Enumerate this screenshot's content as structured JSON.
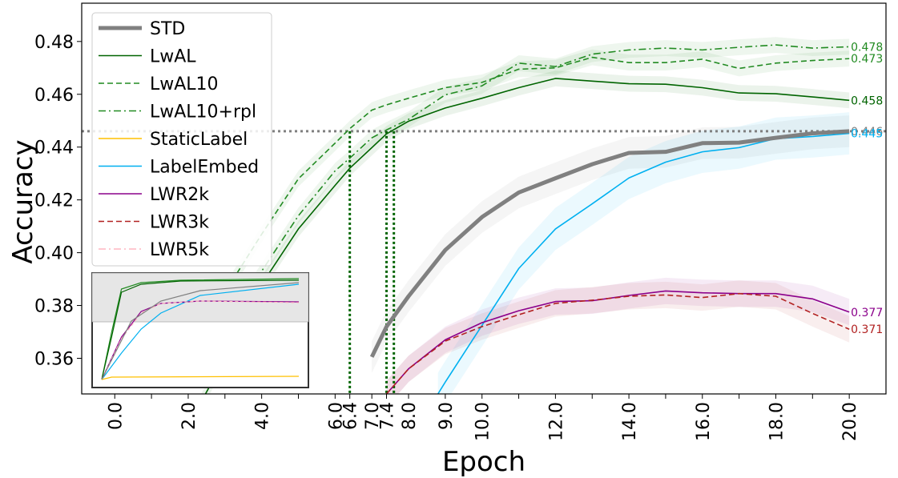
{
  "chart_data": {
    "type": "line",
    "title": "",
    "xlabel": "Epoch",
    "ylabel": "Accuracy",
    "xlim": [
      -0.9,
      21.0
    ],
    "ylim": [
      0.3465,
      0.4945
    ],
    "x_ticks": [
      0,
      2,
      4,
      6,
      6.4,
      7,
      7.4,
      8,
      9,
      10,
      12,
      14,
      16,
      18,
      20
    ],
    "x_tick_labels": [
      "0.0",
      "2.0",
      "4.0",
      "6.0",
      "6.4",
      "7.0",
      "7.4",
      "8.0",
      "9.0",
      "10.0",
      "12.0",
      "14.0",
      "16.0",
      "18.0",
      "20.0"
    ],
    "x_minor_ticks": [
      1,
      3,
      5,
      11,
      13,
      15,
      17,
      19
    ],
    "y_ticks": [
      0.36,
      0.38,
      0.4,
      0.42,
      0.44,
      0.46,
      0.48
    ],
    "y_tick_labels": [
      "0.36",
      "0.38",
      "0.40",
      "0.42",
      "0.44",
      "0.46",
      "0.48"
    ],
    "reference_line": {
      "y": 0.446,
      "color": "#808080",
      "style": "dotted"
    },
    "vertical_markers": [
      {
        "x": 6.4,
        "color": "#006400"
      },
      {
        "x": 7.4,
        "color": "#006400"
      },
      {
        "x": 7.6,
        "color": "#006400"
      }
    ],
    "legend_location": "upper-left",
    "series": [
      {
        "name": "STD",
        "color": "#808080",
        "style": "solid",
        "width": 5,
        "x": [
          7,
          7.4,
          8,
          9,
          10,
          11,
          12,
          13,
          14,
          15,
          16,
          17,
          18,
          19,
          20
        ],
        "values": [
          0.3605,
          0.372,
          0.3835,
          0.401,
          0.4135,
          0.4228,
          0.4282,
          0.4335,
          0.4378,
          0.4382,
          0.4415,
          0.4417,
          0.4435,
          0.4452,
          0.446
        ],
        "band": 0.006,
        "end_label": "0.446"
      },
      {
        "name": "LwAL",
        "color": "#006400",
        "style": "solid",
        "width": 1.6,
        "x": [
          2,
          3,
          4,
          5,
          6,
          6.4,
          7,
          7.4,
          8,
          9,
          10,
          11,
          12,
          13,
          14,
          15,
          16,
          17,
          18,
          19,
          20
        ],
        "values": [
          0.3345,
          0.36,
          0.388,
          0.409,
          0.4255,
          0.432,
          0.4398,
          0.445,
          0.4498,
          0.4548,
          0.4585,
          0.4625,
          0.466,
          0.465,
          0.464,
          0.4638,
          0.4625,
          0.4605,
          0.4602,
          0.459,
          0.4577
        ],
        "band": 0.003,
        "end_label": "0.458"
      },
      {
        "name": "LwAL10",
        "color": "#228B22",
        "style": "dashed",
        "width": 1.6,
        "x": [
          2,
          3,
          4,
          5,
          6,
          6.4,
          7,
          7.4,
          8,
          9,
          10,
          11,
          12,
          13,
          14,
          15,
          16,
          17,
          18,
          19,
          20
        ],
        "values": [
          0.3645,
          0.385,
          0.407,
          0.428,
          0.4415,
          0.447,
          0.454,
          0.456,
          0.4585,
          0.4625,
          0.4645,
          0.4695,
          0.47,
          0.474,
          0.472,
          0.472,
          0.4733,
          0.4698,
          0.4718,
          0.4728,
          0.4735
        ],
        "band": 0.003,
        "end_label": "0.473"
      },
      {
        "name": "LwAL10+rpl",
        "color": "#228B22",
        "style": "dashdot",
        "width": 1.6,
        "x": [
          2,
          3,
          4,
          5,
          6,
          6.4,
          7,
          7.4,
          8,
          9,
          10,
          11,
          12,
          13,
          14,
          15,
          16,
          17,
          18,
          19,
          20
        ],
        "values": [
          0.352,
          0.372,
          0.393,
          0.414,
          0.431,
          0.4358,
          0.4435,
          0.4465,
          0.4505,
          0.4598,
          0.4632,
          0.4718,
          0.4705,
          0.4752,
          0.4768,
          0.4775,
          0.4768,
          0.4778,
          0.4787,
          0.4775,
          0.478
        ],
        "band": 0.003,
        "end_label": "0.478"
      },
      {
        "name": "StaticLabel",
        "color": "#FFC000",
        "style": "solid",
        "width": 1.6,
        "x": [],
        "values": [],
        "band": 0,
        "end_label": ""
      },
      {
        "name": "LabelEmbed",
        "color": "#00B0F0",
        "style": "solid",
        "width": 1.6,
        "x": [
          8.8,
          9,
          10,
          11,
          12,
          13,
          14,
          15,
          16,
          17,
          18,
          19,
          20
        ],
        "values": [
          0.3465,
          0.351,
          0.3725,
          0.394,
          0.409,
          0.4185,
          0.4283,
          0.4343,
          0.4382,
          0.4398,
          0.4432,
          0.444,
          0.4452
        ],
        "band": 0.008,
        "end_label": "0.445"
      },
      {
        "name": "LWR2k",
        "color": "#8B008B",
        "style": "solid",
        "width": 1.6,
        "x": [
          7.4,
          8,
          9,
          10,
          11,
          12,
          13,
          14,
          15,
          16,
          17,
          18,
          19,
          20
        ],
        "values": [
          0.3465,
          0.356,
          0.367,
          0.3735,
          0.378,
          0.3815,
          0.3818,
          0.3838,
          0.3855,
          0.3848,
          0.3845,
          0.3845,
          0.3825,
          0.3775
        ],
        "band": 0.005,
        "end_label": "0.377"
      },
      {
        "name": "LWR3k",
        "color": "#B22222",
        "style": "dashed",
        "width": 1.6,
        "x": [
          7.4,
          8,
          9,
          10,
          11,
          12,
          13,
          14,
          15,
          16,
          17,
          18,
          19,
          20
        ],
        "values": [
          0.3465,
          0.356,
          0.3665,
          0.372,
          0.3765,
          0.3808,
          0.382,
          0.3835,
          0.384,
          0.383,
          0.3845,
          0.3835,
          0.377,
          0.371
        ],
        "band": 0.005,
        "end_label": "0.371"
      },
      {
        "name": "LWR5k",
        "color": "#FFB6C1",
        "style": "dashdot",
        "width": 1.6,
        "x": [],
        "values": [],
        "band": 0,
        "end_label": ""
      }
    ],
    "inset": {
      "location": "lower-left",
      "note": "overview of full accuracy range with shaded zoom region",
      "series_names": [
        "LwAL",
        "LwAL10",
        "LwAL10+rpl",
        "StaticLabel",
        "LabelEmbed",
        "LWR2k",
        "LWR3k",
        "LWR5k",
        "STD"
      ]
    }
  }
}
